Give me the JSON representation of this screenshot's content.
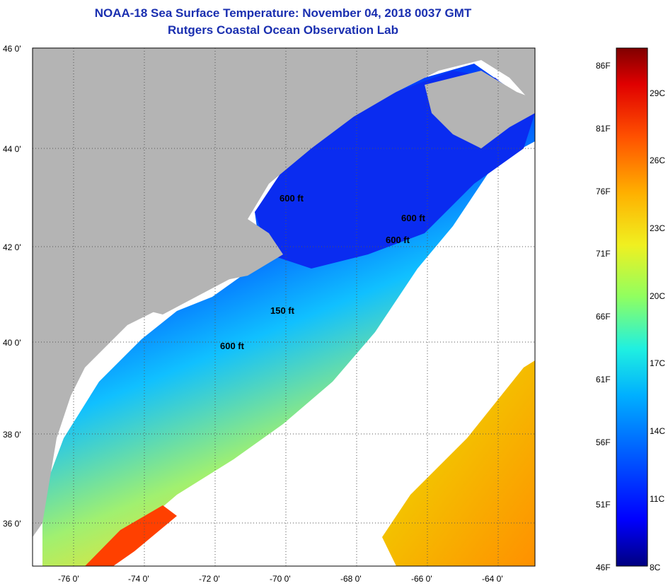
{
  "title": "NOAA-18 Sea Surface Temperature:  November 04, 2018 0037 GMT",
  "subtitle": "Rutgers Coastal Ocean Observation Lab",
  "lat_labels": [
    "46 0'",
    "44 0'",
    "42 0'",
    "40 0'",
    "38 0'",
    "36 0'"
  ],
  "lon_labels": [
    "-76 0'",
    "-74 0'",
    "-72 0'",
    "-70 0'",
    "-68 0'",
    "-66 0'",
    "-64 0'"
  ],
  "depth_labels": [
    "600 ft",
    "600 ft",
    "600 ft",
    "150 ft",
    "600 ft"
  ],
  "colorbar": {
    "fahrenheit": [
      "86F",
      "81F",
      "76F",
      "71F",
      "66F",
      "61F",
      "56F",
      "51F",
      "46F"
    ],
    "celsius": [
      "29C",
      "26C",
      "23C",
      "20C",
      "17C",
      "14C",
      "11C",
      "8C"
    ],
    "colors": [
      "#000080",
      "#0000ff",
      "#0060ff",
      "#00c8ff",
      "#40ffc0",
      "#c0ff40",
      "#ffd000",
      "#ff6000",
      "#e00000",
      "#800000"
    ]
  },
  "colors": {
    "land": "#b4b4b4",
    "no_data": "#ffffff",
    "title": "#1a2fb0"
  }
}
